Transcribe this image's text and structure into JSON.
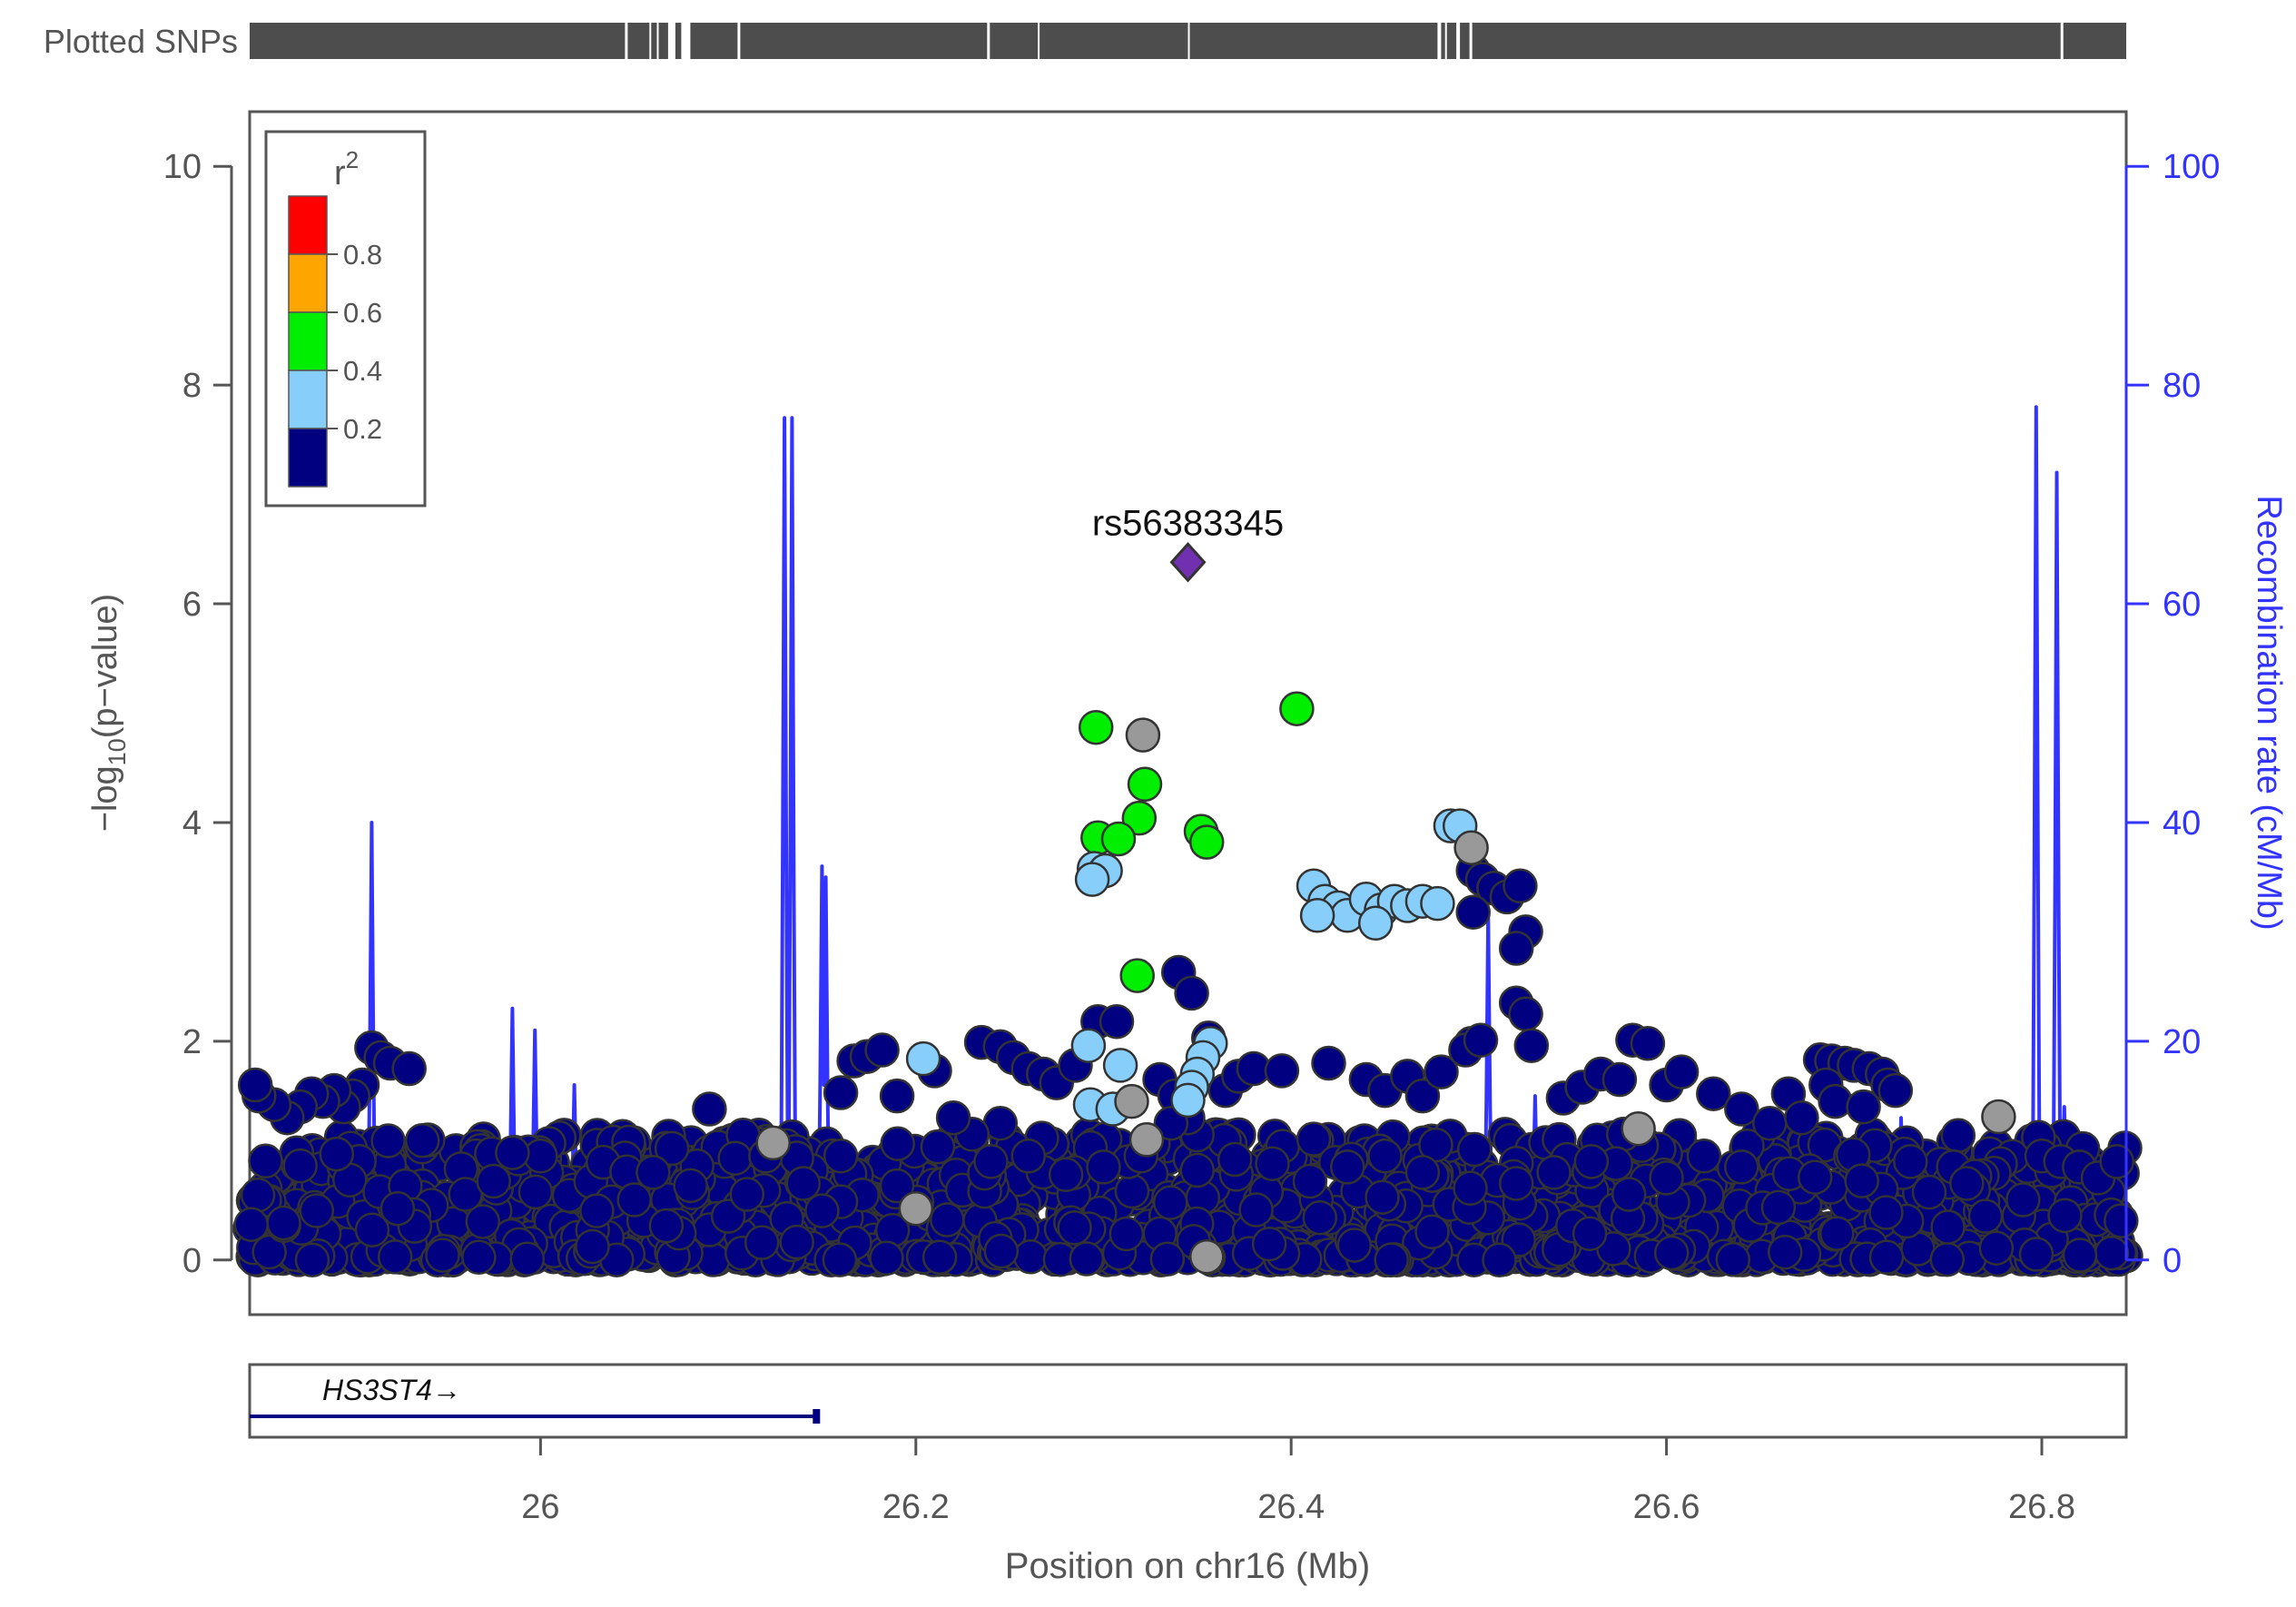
{
  "chart_data": {
    "type": "scatter",
    "title": "",
    "xlabel": "Position on chr16 (Mb)",
    "ylabel": "-log10(p-value)",
    "ylabel_main": "−log",
    "ylabel_sub": "10",
    "ylabel_tail": "(p−value)",
    "y2label": "Recombination rate (cM/Mb)",
    "plotted_snps_label": "Plotted SNPs",
    "xlim": [
      25.845,
      26.845
    ],
    "ylim": [
      -0.5,
      10.5
    ],
    "y2lim": [
      -5,
      105
    ],
    "x_ticks": [
      26.0,
      26.2,
      26.4,
      26.6,
      26.8
    ],
    "x_tick_labels": [
      "26",
      "26.2",
      "26.4",
      "26.6",
      "26.8"
    ],
    "y_ticks": [
      0,
      2,
      4,
      6,
      8,
      10
    ],
    "y_tick_labels": [
      "0",
      "2",
      "4",
      "6",
      "8",
      "10"
    ],
    "y2_ticks": [
      0,
      20,
      40,
      60,
      80,
      100
    ],
    "y2_tick_labels": [
      "0",
      "20",
      "40",
      "60",
      "80",
      "100"
    ],
    "lead_snp": {
      "name": "rs56383345",
      "x": 26.345,
      "y": 6.38,
      "color": "#7030b0"
    },
    "legend": {
      "title": "r",
      "title_sup": "2",
      "placement": "top-left",
      "bins": [
        {
          "range": "0.8-1.0",
          "color": "#ff0000"
        },
        {
          "range": "0.6-0.8",
          "color": "#ffa500"
        },
        {
          "range": "0.4-0.6",
          "color": "#00ee00"
        },
        {
          "range": "0.2-0.4",
          "color": "#87cefa"
        },
        {
          "range": "0.0-0.2",
          "color": "#000080"
        }
      ],
      "breaks": [
        "0.8",
        "0.6",
        "0.4",
        "0.2"
      ]
    },
    "colors": {
      "navy": "#000080",
      "lightblue": "#87cefa",
      "green": "#00ee00",
      "gray": "#999999",
      "recomb": "#3333ff",
      "axis": "#555555"
    },
    "gene": {
      "name": "HS3ST4",
      "arrow": "→",
      "start": 25.845,
      "end": 26.148
    },
    "highlight_series": [
      {
        "name": "0.4-0.6",
        "color": "#00ee00",
        "points": [
          [
            26.296,
            4.87
          ],
          [
            26.403,
            5.04
          ],
          [
            26.322,
            4.35
          ],
          [
            26.319,
            4.04
          ],
          [
            26.297,
            3.86
          ],
          [
            26.308,
            3.85
          ],
          [
            26.352,
            3.92
          ],
          [
            26.355,
            3.82
          ],
          [
            26.318,
            2.6
          ]
        ]
      },
      {
        "name": "0.2-0.4",
        "color": "#87cefa",
        "points": [
          [
            26.485,
            3.97
          ],
          [
            26.49,
            3.97
          ],
          [
            26.295,
            3.58
          ],
          [
            26.301,
            3.56
          ],
          [
            26.294,
            3.48
          ],
          [
            26.412,
            3.42
          ],
          [
            26.418,
            3.28
          ],
          [
            26.425,
            3.22
          ],
          [
            26.43,
            3.15
          ],
          [
            26.44,
            3.3
          ],
          [
            26.448,
            3.2
          ],
          [
            26.455,
            3.28
          ],
          [
            26.462,
            3.24
          ],
          [
            26.47,
            3.28
          ],
          [
            26.478,
            3.26
          ],
          [
            26.414,
            3.15
          ],
          [
            26.445,
            3.08
          ],
          [
            26.292,
            1.96
          ],
          [
            26.309,
            1.78
          ],
          [
            26.357,
            1.98
          ],
          [
            26.353,
            1.85
          ],
          [
            26.35,
            1.7
          ],
          [
            26.347,
            1.58
          ],
          [
            26.345,
            1.46
          ],
          [
            26.293,
            1.42
          ],
          [
            26.305,
            1.38
          ],
          [
            26.204,
            1.84
          ]
        ]
      },
      {
        "name": "gray",
        "color": "#999999",
        "points": [
          [
            26.321,
            4.8
          ],
          [
            26.496,
            3.77
          ],
          [
            26.124,
            1.07
          ],
          [
            26.323,
            1.1
          ],
          [
            26.777,
            1.31
          ],
          [
            26.315,
            1.45
          ],
          [
            26.2,
            0.47
          ],
          [
            26.355,
            0.03
          ],
          [
            26.585,
            1.2
          ]
        ]
      }
    ],
    "navy_points": [
      [
        26.34,
        2.63
      ],
      [
        26.347,
        2.44
      ],
      [
        26.356,
        2.03
      ],
      [
        26.297,
        2.18
      ],
      [
        26.307,
        2.18
      ],
      [
        26.497,
        3.56
      ],
      [
        26.502,
        3.48
      ],
      [
        26.508,
        3.4
      ],
      [
        26.515,
        3.32
      ],
      [
        26.522,
        3.42
      ],
      [
        26.525,
        3.0
      ],
      [
        26.52,
        2.85
      ],
      [
        26.497,
        3.18
      ],
      [
        26.52,
        2.35
      ],
      [
        26.525,
        2.25
      ],
      [
        26.528,
        1.96
      ],
      [
        26.496,
        1.98
      ],
      [
        26.493,
        1.92
      ],
      [
        26.501,
        2.01
      ],
      [
        25.91,
        1.94
      ],
      [
        25.915,
        1.85
      ],
      [
        25.92,
        1.8
      ],
      [
        25.905,
        1.6
      ],
      [
        25.9,
        1.5
      ],
      [
        25.895,
        1.4
      ],
      [
        25.89,
        1.55
      ],
      [
        25.884,
        1.45
      ],
      [
        25.878,
        1.52
      ],
      [
        25.872,
        1.4
      ],
      [
        25.865,
        1.3
      ],
      [
        25.858,
        1.42
      ],
      [
        25.85,
        1.5
      ],
      [
        25.848,
        1.6
      ],
      [
        25.93,
        1.75
      ],
      [
        26.09,
        1.38
      ],
      [
        26.07,
        1.02
      ],
      [
        26.16,
        1.53
      ],
      [
        26.167,
        1.82
      ],
      [
        26.174,
        1.86
      ],
      [
        26.182,
        1.92
      ],
      [
        26.19,
        1.5
      ],
      [
        26.21,
        1.73
      ],
      [
        26.235,
        1.99
      ],
      [
        26.245,
        1.95
      ],
      [
        26.252,
        1.85
      ],
      [
        26.26,
        1.75
      ],
      [
        26.268,
        1.7
      ],
      [
        26.275,
        1.62
      ],
      [
        26.285,
        1.78
      ],
      [
        26.365,
        1.55
      ],
      [
        26.372,
        1.68
      ],
      [
        26.38,
        1.75
      ],
      [
        26.395,
        1.73
      ],
      [
        26.42,
        1.8
      ],
      [
        26.44,
        1.65
      ],
      [
        26.45,
        1.55
      ],
      [
        26.462,
        1.68
      ],
      [
        26.47,
        1.5
      ],
      [
        26.48,
        1.72
      ],
      [
        26.545,
        1.48
      ],
      [
        26.555,
        1.58
      ],
      [
        26.565,
        1.7
      ],
      [
        26.575,
        1.65
      ],
      [
        26.582,
        2.01
      ],
      [
        26.59,
        1.98
      ],
      [
        26.6,
        1.6
      ],
      [
        26.608,
        1.72
      ],
      [
        26.625,
        1.52
      ],
      [
        26.64,
        1.38
      ],
      [
        26.655,
        1.25
      ],
      [
        26.665,
        1.52
      ],
      [
        26.672,
        1.3
      ],
      [
        26.682,
        1.83
      ],
      [
        26.688,
        1.82
      ],
      [
        26.695,
        1.8
      ],
      [
        26.7,
        1.78
      ],
      [
        26.708,
        1.75
      ],
      [
        26.715,
        1.7
      ],
      [
        26.718,
        1.6
      ],
      [
        26.722,
        1.55
      ],
      [
        26.685,
        1.6
      ],
      [
        26.69,
        1.45
      ],
      [
        26.705,
        1.4
      ],
      [
        26.8,
        0.95
      ],
      [
        26.81,
        0.9
      ],
      [
        26.82,
        0.85
      ],
      [
        26.83,
        0.75
      ],
      [
        26.84,
        0.9
      ],
      [
        26.245,
        1.25
      ],
      [
        26.23,
        1.15
      ],
      [
        26.22,
        1.3
      ],
      [
        26.33,
        1.65
      ],
      [
        26.338,
        1.5
      ],
      [
        26.345,
        1.3
      ],
      [
        26.336,
        1.25
      ],
      [
        26.0,
        0.95
      ],
      [
        25.985,
        0.98
      ],
      [
        25.96,
        0.6
      ],
      [
        25.975,
        0.72
      ],
      [
        26.05,
        0.55
      ],
      [
        26.1,
        0.4
      ],
      [
        26.14,
        0.7
      ],
      [
        26.03,
        0.45
      ],
      [
        26.06,
        0.8
      ],
      [
        26.08,
        0.68
      ],
      [
        26.12,
        0.95
      ],
      [
        26.11,
        0.6
      ],
      [
        26.15,
        0.45
      ],
      [
        26.16,
        0.95
      ],
      [
        26.74,
        0.62
      ],
      [
        26.76,
        0.7
      ],
      [
        26.79,
        0.55
      ],
      [
        26.77,
        0.4
      ],
      [
        26.75,
        0.3
      ],
      [
        26.73,
        0.9
      ],
      [
        26.64,
        0.85
      ],
      [
        26.62,
        0.95
      ],
      [
        26.6,
        0.75
      ],
      [
        26.58,
        0.6
      ],
      [
        26.56,
        0.9
      ],
      [
        26.54,
        0.8
      ],
      [
        26.52,
        0.7
      ],
      [
        26.47,
        0.8
      ],
      [
        26.45,
        0.95
      ],
      [
        26.43,
        0.85
      ],
      [
        26.41,
        0.72
      ],
      [
        26.39,
        0.88
      ],
      [
        26.37,
        0.92
      ],
      [
        26.35,
        0.82
      ],
      [
        26.32,
        0.95
      ],
      [
        26.3,
        0.85
      ],
      [
        26.28,
        0.78
      ],
      [
        26.26,
        0.95
      ],
      [
        26.24,
        0.9
      ]
    ]
  }
}
